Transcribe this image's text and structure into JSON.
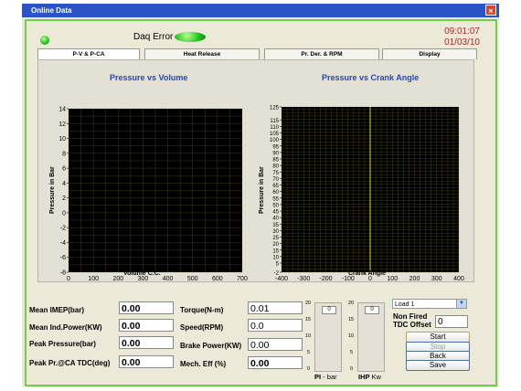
{
  "window": {
    "title": "Online Data",
    "close_glyph": "×"
  },
  "status": {
    "daq_label": "Daq Error",
    "time": "09:01:07",
    "date": "01/03/10"
  },
  "tabs": [
    {
      "label": "P-V & P-CA"
    },
    {
      "label": "Heat Release"
    },
    {
      "label": "Pr. Der. & RPM"
    },
    {
      "label": "Display"
    }
  ],
  "chart_data": [
    {
      "type": "line",
      "title": "Pressure vs Volume",
      "xlabel": "Volume C.C.",
      "ylabel": "Pressure in Bar",
      "xlim": [
        0,
        700
      ],
      "ylim": [
        -8,
        14
      ],
      "xticks": [
        "0",
        "100",
        "200",
        "300",
        "400",
        "500",
        "600",
        "700"
      ],
      "yticks": [
        "-8",
        "-6",
        "-4",
        "-2",
        "0",
        "2",
        "4",
        "6",
        "8",
        "10",
        "12",
        "14"
      ],
      "series": [],
      "grid": true,
      "background": "#000000",
      "grid_color": "#8a8a1a"
    },
    {
      "type": "line",
      "title": "Pressure vs Crank Angle",
      "xlabel": "Crank Angle",
      "ylabel": "Pressure in Bar",
      "xlim": [
        -400,
        400
      ],
      "ylim": [
        -2,
        125
      ],
      "xticks": [
        "-400",
        "-300",
        "-200",
        "-100",
        "0",
        "100",
        "200",
        "300",
        "400"
      ],
      "yticks": [
        "-2",
        "5",
        "10",
        "15",
        "20",
        "25",
        "30",
        "35",
        "40",
        "45",
        "50",
        "55",
        "60",
        "65",
        "70",
        "75",
        "80",
        "85",
        "90",
        "95",
        "100",
        "105",
        "110",
        "115",
        "125"
      ],
      "series": [],
      "grid": true,
      "background": "#000000",
      "grid_color": "#8a8a1a",
      "marker_line_x": 0
    }
  ],
  "fields_left": [
    {
      "label": "Mean IMEP(bar)",
      "value": "0.00"
    },
    {
      "label": "Mean Ind.Power(KW)",
      "value": "0.00"
    },
    {
      "label": "Peak Pressure(bar)",
      "value": "0.00"
    },
    {
      "label": "Peak Pr.@CA TDC(deg)",
      "value": "0.00"
    }
  ],
  "fields_mid": [
    {
      "label": "Torque(N-m)",
      "value": "0.01"
    },
    {
      "label": "Speed(RPM)",
      "value": "0.0"
    },
    {
      "label": "Brake Power(KW)",
      "value": "0.00"
    },
    {
      "label": "Mech. Eff (%)",
      "value": "0.00"
    }
  ],
  "meters": [
    {
      "title": "PI",
      "unit": "- bar",
      "value": "0",
      "ticks": [
        "20",
        "15",
        "10",
        "5",
        "0"
      ],
      "level": 0
    },
    {
      "title": "IHP",
      "unit": "Kw",
      "value": "0",
      "ticks": [
        "20",
        "15",
        "10",
        "5",
        "0"
      ],
      "level": 0
    }
  ],
  "controls": {
    "load_select": "Load 1",
    "offset_label_1": "Non Fired",
    "offset_label_2": "TDC Offset",
    "offset_value": "0",
    "buttons": [
      "Start",
      "Stop",
      "Back",
      "Save"
    ]
  },
  "colors": {
    "led": "#1fc11f",
    "title_blue": "#2146c4",
    "clock": "#a52a2a",
    "frame_green": "#6fcf4a"
  }
}
